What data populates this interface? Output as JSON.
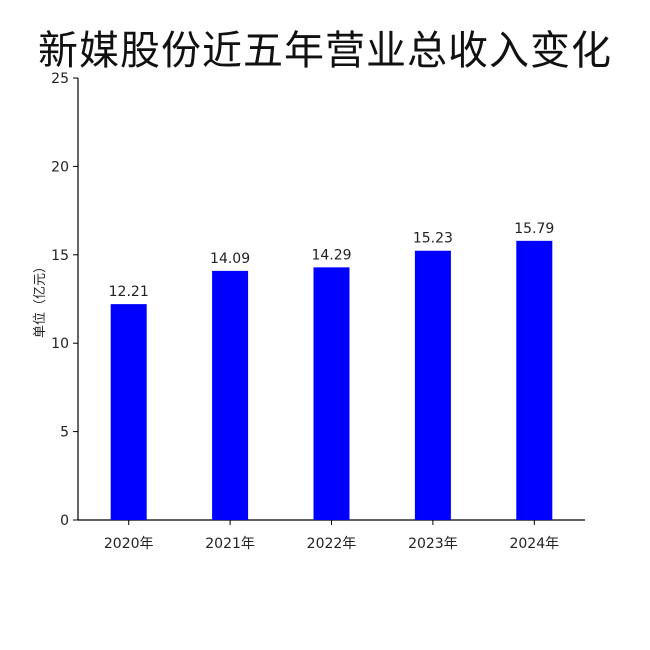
{
  "chart_data": {
    "type": "bar",
    "title": "新媒股份近五年营业总收入变化",
    "categories": [
      "2020年",
      "2021年",
      "2022年",
      "2023年",
      "2024年"
    ],
    "values": [
      12.21,
      14.09,
      14.29,
      15.23,
      15.79
    ],
    "value_labels": [
      "12.21",
      "14.09",
      "14.29",
      "15.23",
      "15.79"
    ],
    "xlabel": "",
    "ylabel": "单位（亿元）",
    "ylim": [
      0,
      25
    ],
    "yticks": [
      0,
      5,
      10,
      15,
      20,
      25
    ],
    "bar_color": "#0000ff",
    "grid": false,
    "legend": false
  }
}
